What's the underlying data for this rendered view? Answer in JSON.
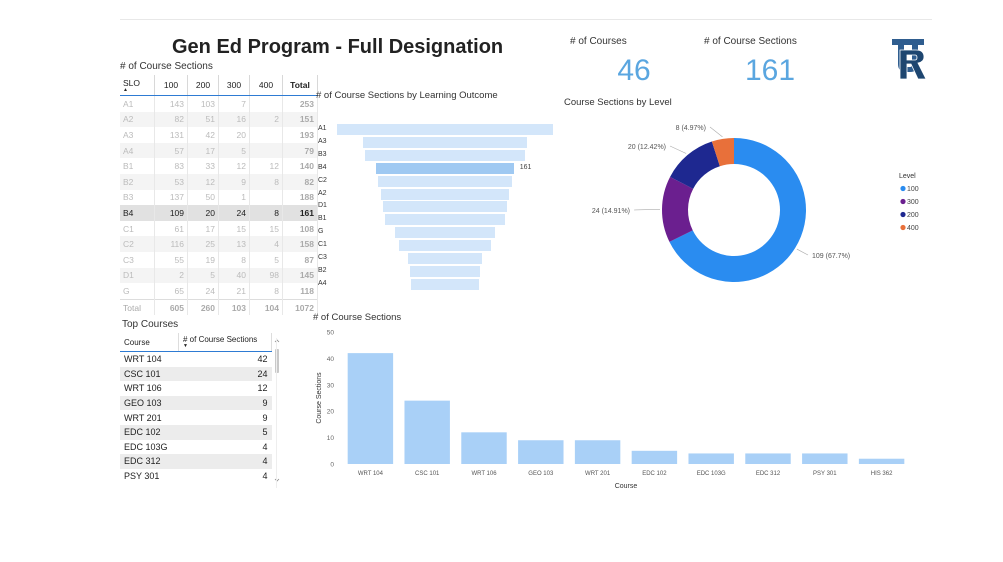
{
  "title": "Gen Ed Program - Full Designation",
  "cards": {
    "courses_label": "# of Courses",
    "courses_value": "46",
    "sections_label": "# of Course Sections",
    "sections_value": "161"
  },
  "logo_letters": "URI",
  "matrix": {
    "title": "# of Course Sections",
    "headers": [
      "SLO",
      "100",
      "200",
      "300",
      "400",
      "Total"
    ],
    "rows": [
      [
        "A1",
        "143",
        "103",
        "7",
        "",
        "253"
      ],
      [
        "A2",
        "82",
        "51",
        "16",
        "2",
        "151"
      ],
      [
        "A3",
        "131",
        "42",
        "20",
        "",
        "193"
      ],
      [
        "A4",
        "57",
        "17",
        "5",
        "",
        "79"
      ],
      [
        "B1",
        "83",
        "33",
        "12",
        "12",
        "140"
      ],
      [
        "B2",
        "53",
        "12",
        "9",
        "8",
        "82"
      ],
      [
        "B3",
        "137",
        "50",
        "1",
        "",
        "188"
      ],
      [
        "B4",
        "109",
        "20",
        "24",
        "8",
        "161"
      ],
      [
        "C1",
        "61",
        "17",
        "15",
        "15",
        "108"
      ],
      [
        "C2",
        "116",
        "25",
        "13",
        "4",
        "158"
      ],
      [
        "C3",
        "55",
        "19",
        "8",
        "5",
        "87"
      ],
      [
        "D1",
        "2",
        "5",
        "40",
        "98",
        "145"
      ],
      [
        "G",
        "65",
        "24",
        "21",
        "8",
        "118"
      ]
    ],
    "highlight_row": "B4",
    "total": [
      "Total",
      "605",
      "260",
      "103",
      "104",
      "1072"
    ]
  },
  "top_courses": {
    "title": "Top Courses",
    "headers": [
      "Course",
      "# of Course Sections"
    ],
    "rows": [
      [
        "WRT 104",
        "42"
      ],
      [
        "CSC 101",
        "24"
      ],
      [
        "WRT 106",
        "12"
      ],
      [
        "GEO 103",
        "9"
      ],
      [
        "WRT 201",
        "9"
      ],
      [
        "EDC 102",
        "5"
      ],
      [
        "EDC 103G",
        "4"
      ],
      [
        "EDC 312",
        "4"
      ],
      [
        "PSY 301",
        "4"
      ]
    ]
  },
  "chart_data": [
    {
      "type": "bar",
      "orientation": "horizontal-funnel",
      "title": "# of Course Sections by Learning Outcome",
      "categories": [
        "A1",
        "A3",
        "B3",
        "B4",
        "C2",
        "A2",
        "D1",
        "B1",
        "G",
        "C1",
        "C3",
        "B2",
        "A4"
      ],
      "values": [
        253,
        193,
        188,
        161,
        158,
        151,
        145,
        140,
        118,
        108,
        87,
        82,
        79
      ],
      "selected": "B4",
      "data_labels": {
        "B4": "161"
      }
    },
    {
      "type": "pie",
      "variant": "donut",
      "title": "Course Sections by Level",
      "legend_title": "Level",
      "legend_position": "right",
      "slices": [
        {
          "label": "100",
          "value": 109,
          "data_label": "109 (67.7%)",
          "color": "#2a8cf0"
        },
        {
          "label": "300",
          "value": 24,
          "data_label": "24 (14.91%)",
          "color": "#6b1f8f"
        },
        {
          "label": "200",
          "value": 20,
          "data_label": "20 (12.42%)",
          "color": "#1e2890"
        },
        {
          "label": "400",
          "value": 8,
          "data_label": "8 (4.97%)",
          "color": "#e8703a"
        }
      ]
    },
    {
      "type": "bar",
      "title": "# of Course Sections",
      "xlabel": "Course",
      "ylabel": "Course Sections",
      "categories": [
        "WRT 104",
        "CSC 101",
        "WRT 106",
        "GEO 103",
        "WRT 201",
        "EDC 102",
        "EDC 103G",
        "EDC 312",
        "PSY 301",
        "HIS 362"
      ],
      "values": [
        42,
        24,
        12,
        9,
        9,
        5,
        4,
        4,
        4,
        2
      ],
      "ylim": [
        0,
        50
      ],
      "yticks": [
        0,
        10,
        20,
        30,
        40,
        50
      ],
      "color": "#a9d0f7"
    }
  ]
}
